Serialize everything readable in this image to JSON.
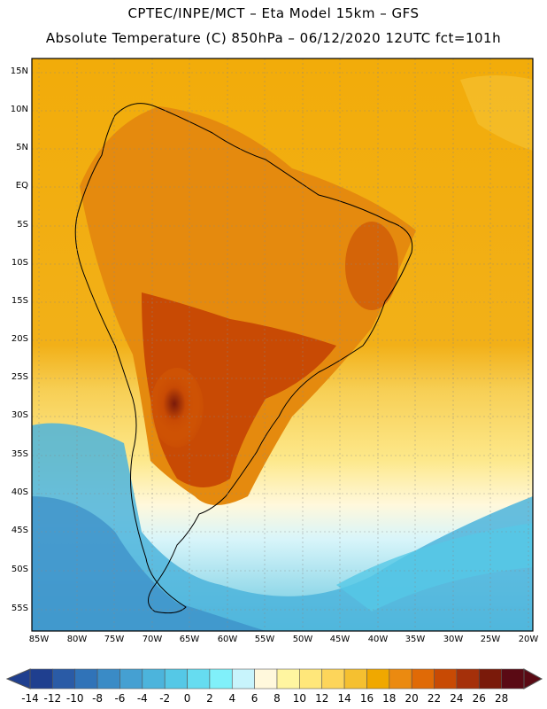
{
  "header": {
    "title_line1": "CPTEC/INPE/MCT –  Eta Model 15km – GFS",
    "title_line2": "Absolute Temperature (C) 850hPa – 06/12/2020 12UTC fct=101h"
  },
  "map": {
    "lat_labels": [
      "15N",
      "10N",
      "5N",
      "EQ",
      "5S",
      "10S",
      "15S",
      "20S",
      "25S",
      "30S",
      "35S",
      "40S",
      "45S",
      "50S",
      "55S"
    ],
    "lon_labels": [
      "85W",
      "80W",
      "75W",
      "70W",
      "65W",
      "60W",
      "55W",
      "50W",
      "45W",
      "40W",
      "35W",
      "30W",
      "25W",
      "20W"
    ]
  },
  "colorbar": {
    "labels": [
      "-14",
      "-12",
      "-10",
      "-8",
      "-6",
      "-4",
      "-2",
      "0",
      "2",
      "4",
      "6",
      "8",
      "10",
      "12",
      "14",
      "16",
      "18",
      "20",
      "22",
      "24",
      "26",
      "28"
    ],
    "colors": [
      "#1f3f8f",
      "#2a5ba6",
      "#3073b8",
      "#3a8bc6",
      "#45a0d2",
      "#4cb4dc",
      "#55c8e6",
      "#66dcf0",
      "#80f0fa",
      "#c8f4fc",
      "#fff8dc",
      "#fff5a0",
      "#ffe77a",
      "#fdd55a",
      "#f5c030",
      "#f0a800",
      "#eb8a10",
      "#e06a06",
      "#c84a04",
      "#a5300a",
      "#7a1a0a",
      "#5a0a14"
    ]
  }
}
